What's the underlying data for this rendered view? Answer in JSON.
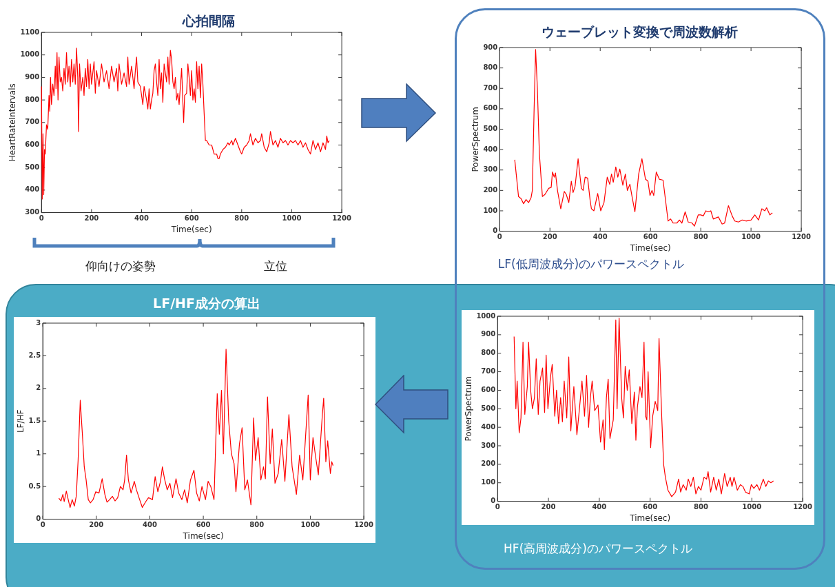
{
  "chart_data": [
    {
      "type": "line",
      "title": "心拍間隔",
      "xlabel": "Time(sec)",
      "ylabel": "HeartRateIntervals",
      "xlim": [
        0,
        1200
      ],
      "xticks": [
        0,
        200,
        400,
        600,
        800,
        1000,
        1200
      ],
      "ylim": [
        300,
        1100
      ],
      "yticks": [
        300,
        400,
        500,
        600,
        700,
        800,
        900,
        1000,
        1100
      ],
      "grid": false,
      "legend": false,
      "annotations": [
        "仰向けの姿勢",
        "立位"
      ],
      "x": [
        0,
        3,
        6,
        9,
        12,
        15,
        20,
        25,
        30,
        33,
        36,
        40,
        45,
        50,
        55,
        58,
        62,
        66,
        70,
        75,
        80,
        85,
        90,
        95,
        100,
        105,
        110,
        115,
        120,
        125,
        130,
        135,
        140,
        145,
        148,
        152,
        158,
        165,
        170,
        175,
        180,
        185,
        190,
        195,
        200,
        210,
        215,
        220,
        230,
        240,
        250,
        260,
        270,
        280,
        290,
        300,
        305,
        310,
        320,
        330,
        340,
        345,
        350,
        360,
        370,
        375,
        380,
        385,
        395,
        400,
        405,
        410,
        420,
        425,
        430,
        435,
        440,
        445,
        450,
        455,
        460,
        465,
        470,
        475,
        480,
        485,
        490,
        500,
        505,
        510,
        515,
        520,
        525,
        530,
        535,
        540,
        545,
        550,
        555,
        560,
        565,
        568,
        572,
        580,
        585,
        590,
        595,
        600,
        605,
        610,
        615,
        620,
        625,
        630,
        635,
        640,
        645,
        650,
        655,
        660,
        670,
        680,
        690,
        700,
        705,
        710,
        715,
        725,
        735,
        745,
        750,
        760,
        765,
        775,
        785,
        795,
        800,
        810,
        820,
        830,
        835,
        845,
        855,
        865,
        875,
        880,
        890,
        900,
        910,
        915,
        925,
        935,
        945,
        955,
        965,
        975,
        985,
        995,
        1005,
        1015,
        1025,
        1035,
        1045,
        1055,
        1065,
        1075,
        1085,
        1095,
        1105,
        1115,
        1125,
        1135,
        1140,
        1145,
        1150
      ],
      "series": [
        {
          "color": "#ff0000",
          "values": [
            860,
            360,
            650,
            380,
            580,
            560,
            690,
            670,
            820,
            750,
            900,
            780,
            870,
            820,
            950,
            850,
            1010,
            800,
            990,
            880,
            900,
            840,
            940,
            870,
            1010,
            880,
            950,
            860,
            980,
            880,
            960,
            870,
            1030,
            900,
            660,
            960,
            840,
            900,
            820,
            940,
            860,
            980,
            850,
            960,
            870,
            970,
            830,
            930,
            860,
            960,
            880,
            930,
            850,
            950,
            880,
            940,
            840,
            960,
            870,
            920,
            860,
            990,
            870,
            950,
            850,
            930,
            990,
            880,
            860,
            820,
            780,
            860,
            800,
            760,
            850,
            760,
            800,
            830,
            930,
            960,
            880,
            820,
            980,
            850,
            920,
            790,
            960,
            880,
            990,
            870,
            1020,
            980,
            880,
            850,
            900,
            800,
            830,
            780,
            860,
            940,
            790,
            700,
            820,
            830,
            960,
            900,
            820,
            930,
            800,
            850,
            790,
            970,
            850,
            950,
            810,
            960,
            870,
            740,
            620,
            620,
            600,
            600,
            560,
            560,
            540,
            540,
            560,
            580,
            590,
            610,
            600,
            620,
            600,
            630,
            600,
            570,
            560,
            590,
            600,
            620,
            650,
            600,
            630,
            610,
            620,
            650,
            590,
            570,
            610,
            660,
            600,
            620,
            590,
            630,
            610,
            620,
            600,
            620,
            610,
            620,
            600,
            620,
            590,
            610,
            580,
            560,
            620,
            580,
            610,
            570,
            610,
            580,
            640,
            610,
            620
          ]
        }
      ]
    },
    {
      "type": "line",
      "title": "ウェーブレット変換で周波数解析",
      "xlabel": "Time(sec)",
      "ylabel": "PowerSpectrum",
      "xlim": [
        0,
        1200
      ],
      "xticks": [
        0,
        200,
        400,
        600,
        800,
        1000,
        1200
      ],
      "ylim": [
        0,
        900
      ],
      "yticks": [
        0,
        100,
        200,
        300,
        400,
        500,
        600,
        700,
        800,
        900
      ],
      "grid": false,
      "legend": false,
      "annotations": [
        "LF(低周波成分)のパワースペクトル"
      ],
      "x": [
        60,
        75,
        85,
        95,
        105,
        115,
        125,
        130,
        137,
        143,
        150,
        158,
        170,
        180,
        195,
        205,
        210,
        217,
        222,
        230,
        243,
        257,
        265,
        275,
        285,
        292,
        300,
        312,
        325,
        332,
        340,
        350,
        360,
        365,
        375,
        390,
        402,
        415,
        428,
        438,
        445,
        452,
        462,
        470,
        478,
        490,
        500,
        508,
        518,
        528,
        538,
        553,
        566,
        580,
        590,
        598,
        606,
        613,
        623,
        635,
        650,
        670,
        680,
        690,
        705,
        715,
        725,
        738,
        750,
        765,
        775,
        790,
        800,
        810,
        820,
        830,
        840,
        850,
        870,
        885,
        895,
        910,
        925,
        935,
        950,
        965,
        980,
        1000,
        1015,
        1030,
        1043,
        1055,
        1062,
        1075,
        1085
      ],
      "series": [
        {
          "color": "#ff0000",
          "values": [
            350,
            170,
            160,
            135,
            155,
            140,
            165,
            200,
            600,
            890,
            700,
            380,
            170,
            180,
            210,
            215,
            290,
            265,
            285,
            200,
            110,
            195,
            180,
            140,
            245,
            190,
            220,
            355,
            210,
            200,
            265,
            260,
            150,
            110,
            100,
            185,
            100,
            140,
            265,
            230,
            280,
            240,
            315,
            265,
            305,
            225,
            280,
            200,
            230,
            160,
            95,
            280,
            355,
            255,
            245,
            175,
            200,
            175,
            290,
            255,
            250,
            50,
            60,
            40,
            40,
            55,
            40,
            95,
            45,
            40,
            25,
            80,
            80,
            75,
            100,
            95,
            100,
            60,
            70,
            35,
            40,
            125,
            75,
            50,
            45,
            55,
            50,
            55,
            80,
            55,
            110,
            100,
            115,
            80,
            90
          ]
        }
      ]
    },
    {
      "type": "line",
      "title": "LF/HF成分の算出",
      "xlabel": "Time(sec)",
      "ylabel": "LF/HF",
      "xlim": [
        0,
        1200
      ],
      "xticks": [
        0,
        200,
        400,
        600,
        800,
        1000,
        1200
      ],
      "ylim": [
        0,
        3
      ],
      "yticks": [
        0,
        0.5,
        1,
        1.5,
        2,
        2.5,
        3
      ],
      "grid": false,
      "legend": false,
      "x": [
        60,
        68,
        75,
        80,
        88,
        95,
        102,
        110,
        118,
        125,
        132,
        140,
        148,
        155,
        162,
        170,
        178,
        188,
        198,
        210,
        222,
        232,
        240,
        250,
        260,
        270,
        280,
        290,
        300,
        306,
        313,
        320,
        330,
        342,
        350,
        362,
        372,
        385,
        395,
        410,
        420,
        430,
        440,
        447,
        455,
        465,
        475,
        485,
        498,
        508,
        520,
        530,
        540,
        552,
        565,
        575,
        585,
        595,
        608,
        618,
        628,
        640,
        652,
        660,
        668,
        675,
        685,
        695,
        705,
        715,
        722,
        735,
        745,
        755,
        765,
        778,
        788,
        795,
        805,
        815,
        825,
        832,
        840,
        850,
        858,
        868,
        880,
        893,
        905,
        920,
        932,
        948,
        960,
        972,
        992,
        1000,
        1010,
        1020,
        1030,
        1045,
        1050,
        1058,
        1065,
        1075,
        1080,
        1085
      ],
      "series": [
        {
          "color": "#ff0000",
          "values": [
            0.32,
            0.28,
            0.38,
            0.27,
            0.43,
            0.3,
            0.18,
            0.3,
            0.2,
            0.35,
            0.9,
            1.82,
            1.3,
            0.8,
            0.6,
            0.3,
            0.25,
            0.3,
            0.42,
            0.4,
            0.62,
            0.38,
            0.26,
            0.3,
            0.35,
            0.28,
            0.33,
            0.5,
            0.45,
            0.6,
            0.98,
            0.6,
            0.4,
            0.58,
            0.45,
            0.3,
            0.18,
            0.27,
            0.33,
            0.3,
            0.65,
            0.42,
            0.58,
            0.8,
            0.62,
            0.45,
            0.55,
            0.33,
            0.62,
            0.4,
            0.3,
            0.45,
            0.25,
            0.6,
            0.75,
            0.4,
            0.28,
            0.5,
            0.3,
            0.58,
            0.5,
            0.3,
            1.92,
            1.3,
            1.97,
            1.0,
            2.6,
            1.5,
            1.0,
            0.85,
            0.42,
            1.15,
            1.4,
            0.45,
            0.6,
            0.22,
            1.55,
            0.9,
            1.25,
            0.6,
            0.8,
            0.62,
            1.87,
            0.85,
            1.38,
            0.55,
            0.7,
            1.22,
            0.58,
            1.6,
            0.8,
            0.38,
            0.98,
            0.6,
            1.9,
            0.6,
            1.25,
            0.95,
            0.68,
            1.6,
            1.85,
            0.88,
            1.2,
            0.7,
            0.88,
            0.82
          ]
        }
      ]
    },
    {
      "type": "line",
      "xlabel": "Time(sec)",
      "ylabel": "PowerSpectrum",
      "xlim": [
        0,
        1200
      ],
      "xticks": [
        0,
        200,
        400,
        600,
        800,
        1000,
        1200
      ],
      "ylim": [
        0,
        1000
      ],
      "yticks": [
        0,
        100,
        200,
        300,
        400,
        500,
        600,
        700,
        800,
        900,
        1000
      ],
      "grid": false,
      "legend": false,
      "annotations": [
        "HF(高周波成分)のパワースペクトル"
      ],
      "x": [
        65,
        72,
        77,
        85,
        92,
        100,
        107,
        117,
        122,
        130,
        137,
        145,
        152,
        160,
        167,
        177,
        185,
        191,
        198,
        208,
        215,
        225,
        232,
        240,
        248,
        255,
        262,
        272,
        280,
        288,
        300,
        312,
        322,
        332,
        342,
        350,
        358,
        365,
        372,
        382,
        395,
        405,
        415,
        420,
        428,
        435,
        442,
        455,
        465,
        470,
        478,
        488,
        495,
        502,
        510,
        518,
        528,
        538,
        544,
        550,
        560,
        568,
        576,
        582,
        587,
        592,
        602,
        610,
        620,
        630,
        635,
        645,
        653,
        660,
        670,
        685,
        700,
        712,
        720,
        730,
        742,
        750,
        760,
        770,
        780,
        790,
        800,
        812,
        822,
        828,
        838,
        850,
        860,
        870,
        880,
        893,
        903,
        915,
        922,
        930,
        943,
        955,
        965,
        975,
        990,
        998,
        1008,
        1020,
        1030,
        1045,
        1055,
        1065,
        1075,
        1085
      ],
      "series": [
        {
          "color": "#ff0000",
          "values": [
            890,
            500,
            650,
            370,
            450,
            860,
            470,
            620,
            860,
            600,
            500,
            560,
            770,
            470,
            650,
            720,
            480,
            790,
            500,
            670,
            740,
            460,
            600,
            420,
            560,
            430,
            650,
            450,
            780,
            380,
            620,
            360,
            500,
            650,
            460,
            680,
            400,
            560,
            650,
            490,
            520,
            320,
            440,
            280,
            560,
            660,
            340,
            440,
            980,
            500,
            990,
            560,
            450,
            730,
            600,
            710,
            420,
            590,
            330,
            510,
            620,
            560,
            860,
            460,
            440,
            700,
            290,
            460,
            540,
            490,
            880,
            480,
            200,
            130,
            60,
            25,
            50,
            120,
            50,
            90,
            60,
            120,
            80,
            130,
            40,
            80,
            60,
            130,
            120,
            160,
            50,
            130,
            60,
            120,
            40,
            150,
            80,
            130,
            80,
            130,
            60,
            90,
            80,
            50,
            40,
            90,
            70,
            90,
            60,
            120,
            80,
            110,
            100,
            110
          ]
        }
      ]
    }
  ]
}
